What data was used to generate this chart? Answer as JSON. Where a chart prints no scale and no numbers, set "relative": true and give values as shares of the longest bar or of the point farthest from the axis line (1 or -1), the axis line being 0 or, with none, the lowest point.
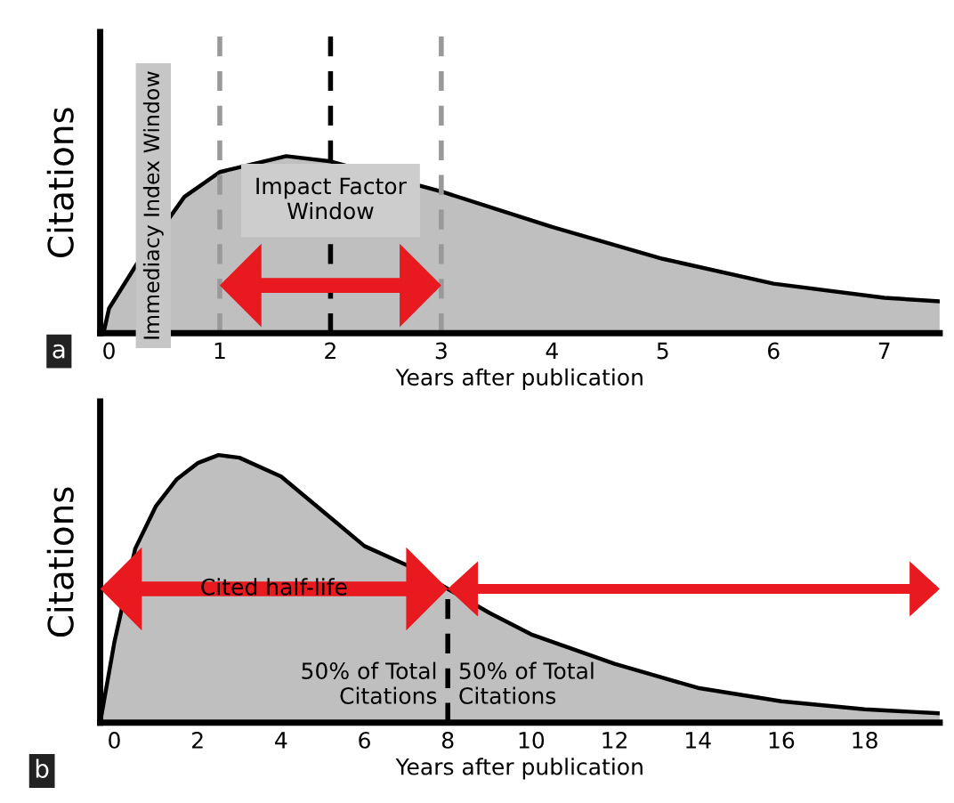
{
  "chart_data": [
    {
      "type": "area",
      "relative": true,
      "ylabel": "Citations",
      "xlabel": "Years after publication",
      "x": [
        -0.05,
        0,
        0.25,
        0.68,
        1,
        1.6,
        2,
        3,
        4,
        5,
        6,
        7,
        7.5
      ],
      "series": [
        {
          "color": "#bfbfbf",
          "values": [
            0,
            0.14,
            0.39,
            0.77,
            0.91,
            1.0,
            0.97,
            0.8,
            0.6,
            0.42,
            0.28,
            0.2,
            0.18
          ]
        }
      ],
      "xlim": [
        -0.08,
        7.5
      ],
      "xticks": [
        0,
        1,
        2,
        3,
        4,
        5,
        6,
        7
      ],
      "tick_labels": "x",
      "grid": false,
      "ref_lines": [
        {
          "axis": "x",
          "value": 1,
          "color": "#999999",
          "line_style": "dashed"
        },
        {
          "axis": "x",
          "value": 2,
          "color": "#000000",
          "line_style": "dashed"
        },
        {
          "axis": "x",
          "value": 3,
          "color": "#999999",
          "line_style": "dashed"
        }
      ],
      "annotations": [
        "Immediacy Index Window",
        "Impact Factor\nWindow",
        "a"
      ]
    },
    {
      "type": "area",
      "relative": true,
      "ylabel": "Citations",
      "xlabel": "Years after publication",
      "x": [
        -0.34,
        0,
        0.5,
        1,
        1.5,
        2,
        2.5,
        3,
        4,
        5,
        6,
        7,
        8,
        9,
        10,
        12,
        14,
        16,
        18,
        19.8
      ],
      "series": [
        {
          "color": "#bfbfbf",
          "values": [
            0,
            0.3,
            0.65,
            0.81,
            0.91,
            0.97,
            1.0,
            0.99,
            0.92,
            0.79,
            0.66,
            0.59,
            0.5,
            0.41,
            0.33,
            0.22,
            0.13,
            0.08,
            0.05,
            0.035
          ]
        }
      ],
      "xlim": [
        -0.34,
        19.8
      ],
      "xticks": [
        0,
        2,
        4,
        6,
        8,
        10,
        12,
        14,
        16,
        18
      ],
      "tick_labels": "x",
      "grid": false,
      "ref_lines": [
        {
          "axis": "x",
          "value": 8,
          "color": "#000000",
          "line_style": "dashed"
        }
      ],
      "annotations": [
        "Cited half-life",
        "50% of Total\nCitations",
        "50% of Total\nCitations",
        "b"
      ]
    }
  ]
}
